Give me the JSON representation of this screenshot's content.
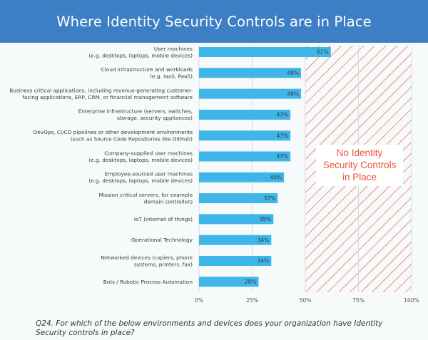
{
  "header": {
    "title": "Where Identity Security Controls are in Place"
  },
  "footer": {
    "question": "Q24. For which of the below environments and devices does your organization have Identity Security controls in place?"
  },
  "annotation": {
    "text_lines": [
      "No Identity",
      "Security Controls",
      "in Place"
    ],
    "color": "#e8553a",
    "region_start": 50,
    "region_end": 100
  },
  "chart_data": {
    "type": "bar",
    "orientation": "horizontal",
    "title": "Where Identity Security Controls are in Place",
    "categories": [
      [
        "User machines",
        "(e.g. desktops, laptops, mobile devices)"
      ],
      [
        "Cloud infrastructure and workloads",
        "(e.g. IaaS, PaaS)"
      ],
      [
        "Business critical applications, including revenue-generating customer-",
        "facing applications, ERP, CRM, or financial management software"
      ],
      [
        "Enterprise infrastructure (servers, switches,",
        "storage, security appliances)"
      ],
      [
        "DevOps, CI/CD pipelines or other development environments",
        "(such as Source Code Repositories like GitHub)"
      ],
      [
        "Company-supplied user machines",
        "(e.g. desktops, laptops, mobile devices)"
      ],
      [
        "Employee-sourced user machines",
        "(e.g. desktops, laptops, mobile devices)"
      ],
      [
        "Mission critical servers, for example",
        "domain controllers"
      ],
      [
        "IoT (internet of things)"
      ],
      [
        "Operational Technology"
      ],
      [
        "Networked devices (copiers, phone",
        "systems, printers, fax)"
      ],
      [
        "Bots / Robotic Process Automation"
      ]
    ],
    "values": [
      62,
      48,
      48,
      43,
      43,
      43,
      40,
      37,
      35,
      34,
      34,
      28
    ],
    "value_labels": [
      "62%",
      "48%",
      "48%",
      "43%",
      "43%",
      "43%",
      "40%",
      "37%",
      "35%",
      "34%",
      "34%",
      "28%"
    ],
    "xlim": [
      0,
      100
    ],
    "x_ticks": [
      0,
      25,
      50,
      75,
      100
    ],
    "x_tick_labels": [
      "0%",
      "25%",
      "50%",
      "75%",
      "100%"
    ],
    "bar_color": "#3fb6ea",
    "hatch_color": "#e8553a",
    "grid": true
  }
}
